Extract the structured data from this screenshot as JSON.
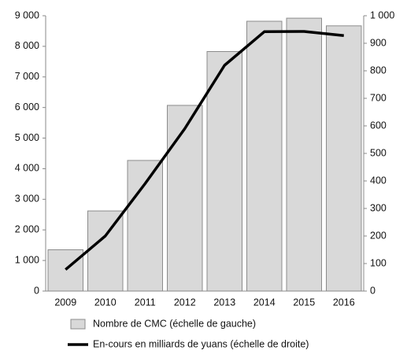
{
  "chart_data": {
    "type": "bar",
    "categories": [
      "2009",
      "2010",
      "2011",
      "2012",
      "2013",
      "2014",
      "2015",
      "2016"
    ],
    "series": [
      {
        "name": "Nombre de CMC (échelle de gauche)",
        "type": "bar",
        "color": "#d9d9d9",
        "values": [
          1350,
          2620,
          4270,
          6070,
          7830,
          8820,
          8920,
          8670
        ]
      },
      {
        "name": "En-cours en milliards de yuans (échelle de droite)",
        "type": "line",
        "axis": "y2",
        "color": "#000000",
        "values": [
          78,
          200,
          390,
          590,
          820,
          942,
          943,
          928
        ]
      }
    ],
    "ylim": [
      0,
      9000
    ],
    "yticks": [
      0,
      {
        "value": 1000,
        "label": "1 000"
      },
      {
        "value": 2000,
        "label": "2 000"
      },
      {
        "value": 3000,
        "label": "3 000"
      },
      {
        "value": 4000,
        "label": "4 000"
      },
      {
        "value": 5000,
        "label": "5 000"
      },
      {
        "value": 6000,
        "label": "6 000"
      },
      {
        "value": 7000,
        "label": "7 000"
      },
      {
        "value": 8000,
        "label": "8 000"
      },
      {
        "value": 9000,
        "label": "9 000"
      }
    ],
    "y2lim": [
      0,
      1000
    ],
    "y2ticks": [
      0,
      100,
      200,
      300,
      400,
      500,
      600,
      700,
      800,
      900,
      {
        "value": 1000,
        "label": "1 000"
      }
    ],
    "legend": "bottom"
  }
}
